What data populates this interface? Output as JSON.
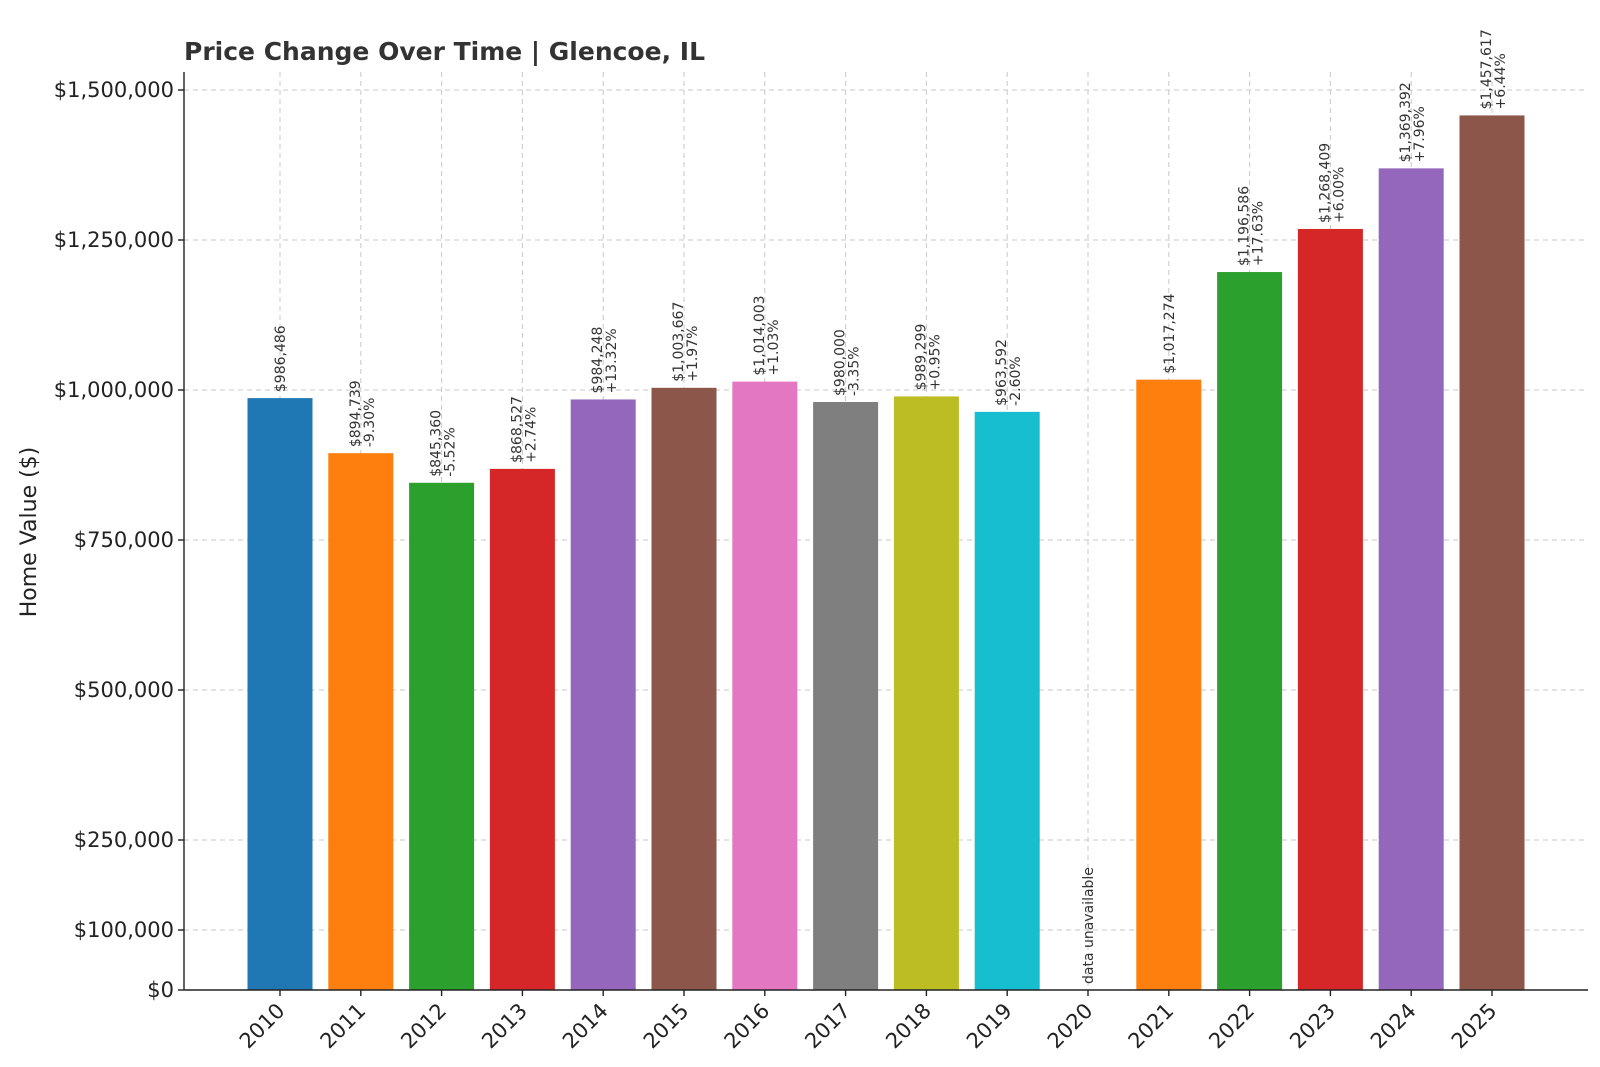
{
  "chart_data": {
    "type": "bar",
    "title": "Price Change Over Time | Glencoe, IL",
    "xlabel": "",
    "ylabel": "Home Value ($)",
    "ylim": [
      0,
      1530000
    ],
    "yticks": [
      0,
      100000,
      250000,
      500000,
      750000,
      1000000,
      1250000,
      1500000
    ],
    "ytick_labels": [
      "$0",
      "$100,000",
      "$250,000",
      "$500,000",
      "$750,000",
      "$1,000,000",
      "$1,250,000",
      "$1,500,000"
    ],
    "grid": true,
    "legend": "none",
    "categories": [
      "2010",
      "2011",
      "2012",
      "2013",
      "2014",
      "2015",
      "2016",
      "2017",
      "2018",
      "2019",
      "2020",
      "2021",
      "2022",
      "2023",
      "2024",
      "2025"
    ],
    "values": [
      986486,
      894739,
      845360,
      868527,
      984248,
      1003667,
      1014003,
      980000,
      989299,
      963592,
      null,
      1017274,
      1196586,
      1268409,
      1369392,
      1457617
    ],
    "value_labels": [
      "$986,486",
      "$894,739",
      "$845,360",
      "$868,527",
      "$984,248",
      "$1,003,667",
      "$1,014,003",
      "$980,000",
      "$989,299",
      "$963,592",
      "",
      "$1,017,274",
      "$1,196,586",
      "$1,268,409",
      "$1,369,392",
      "$1,457,617"
    ],
    "change_labels": [
      "",
      "-9.30%",
      "-5.52%",
      "+2.74%",
      "+13.32%",
      "+1.97%",
      "+1.03%",
      "-3.35%",
      "+0.95%",
      "-2.60%",
      "",
      "",
      "+17.63%",
      "+6.00%",
      "+7.96%",
      "+6.44%"
    ],
    "missing_label": "data unavailable",
    "colors": [
      "#1f77b4",
      "#ff7f0e",
      "#2ca02c",
      "#d62728",
      "#9467bd",
      "#8c564b",
      "#e377c2",
      "#7f7f7f",
      "#bcbd22",
      "#17becf",
      "#1f77b4",
      "#ff7f0e",
      "#2ca02c",
      "#d62728",
      "#9467bd",
      "#8c564b"
    ]
  }
}
